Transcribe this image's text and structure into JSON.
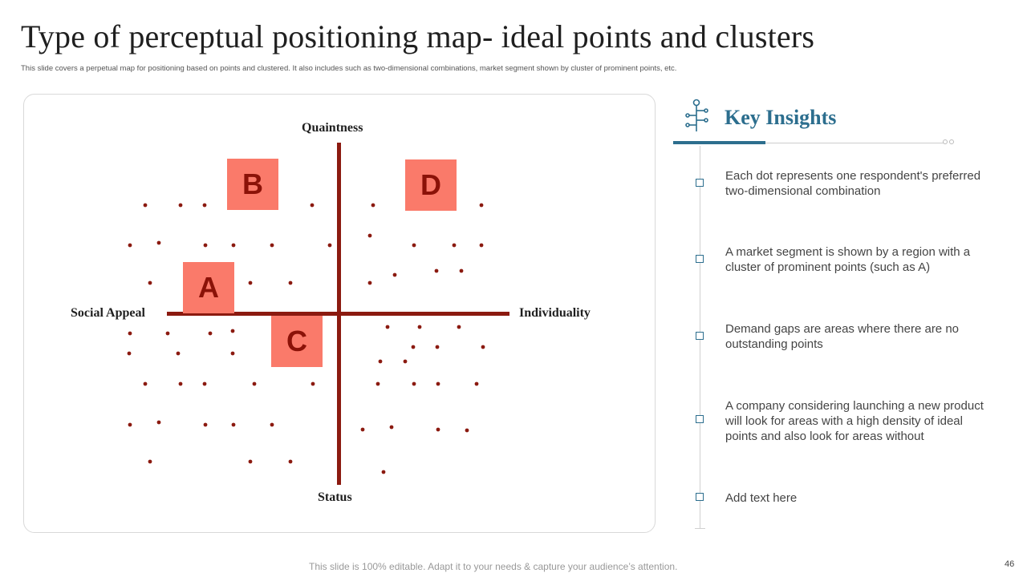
{
  "slide": {
    "title": "Type of perceptual positioning map- ideal points and clusters",
    "subtitle": "This slide covers a perpetual map  for positioning based on points and clustered. It also includes such as two-dimensional combinations, market segment shown by cluster of prominent points, etc.",
    "footer": "This slide is 100% editable. Adapt it to your needs & capture your audience’s attention.",
    "page_number": "46"
  },
  "map": {
    "axis_labels": {
      "top": "Quaintness",
      "bottom": "Status",
      "left": "Social Appeal",
      "right": "Individuality"
    },
    "clusters": [
      "A",
      "B",
      "C",
      "D"
    ],
    "colors": {
      "axis": "#8b1a10",
      "dot": "#8b1a10",
      "cluster_fill": "#fa7a6a",
      "cluster_text": "#8b1208"
    }
  },
  "insights": {
    "title": "Key Insights",
    "icon": "circuit-tree-icon",
    "accent_color": "#2c6e8e",
    "items": [
      "Each dot represents one respondent's preferred two-dimensional combination",
      "A market segment is shown by a region with a cluster of prominent points (such as A)",
      "Demand gaps are areas where there are no outstanding points",
      "A company considering launching  a new product will look for areas with a high density of ideal points and also look for areas without",
      "Add text here"
    ]
  }
}
